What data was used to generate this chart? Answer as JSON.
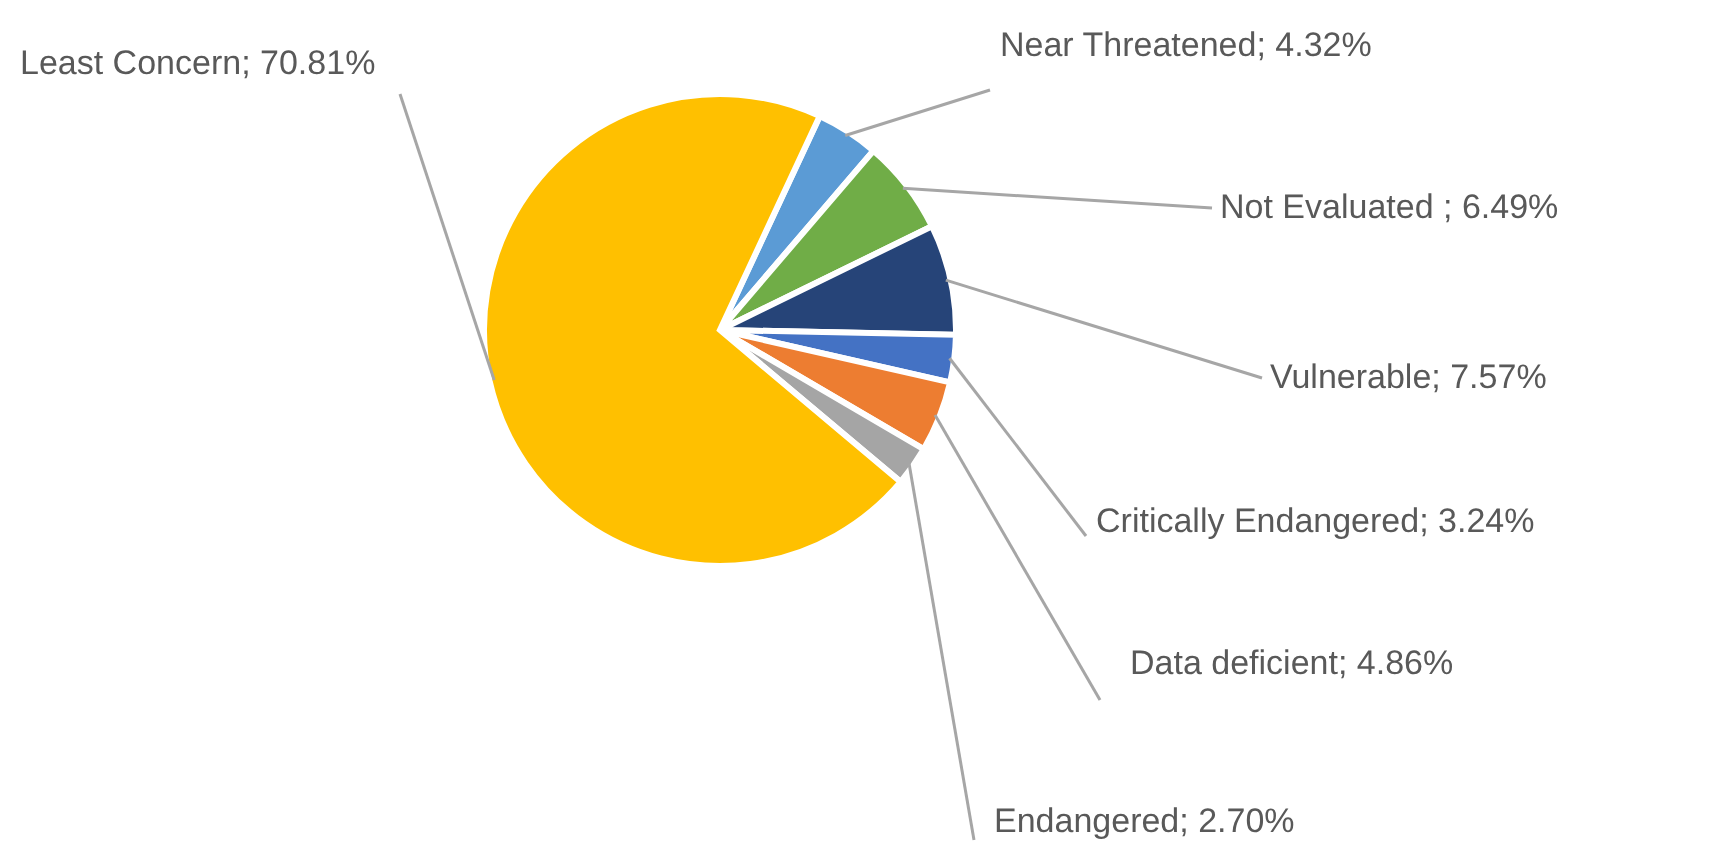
{
  "chart_data": {
    "type": "pie",
    "categories": [
      "Near Threatened",
      "Not Evaluated",
      "Vulnerable",
      "Critically Endangered",
      "Data deficient",
      "Endangered",
      "Least Concern"
    ],
    "values": [
      4.32,
      6.49,
      7.57,
      3.24,
      4.86,
      2.7,
      70.81
    ],
    "colors": [
      "#5b9bd5",
      "#70ad47",
      "#264478",
      "#4472c4",
      "#ed7d31",
      "#a5a5a5",
      "#ffc000"
    ],
    "value_labels": [
      "; 4.32%",
      " ; 6.49%",
      "; 7.57%",
      "; 3.24%",
      "; 4.86%",
      "; 2.70%",
      "; 70.81%"
    ],
    "legend": false
  }
}
